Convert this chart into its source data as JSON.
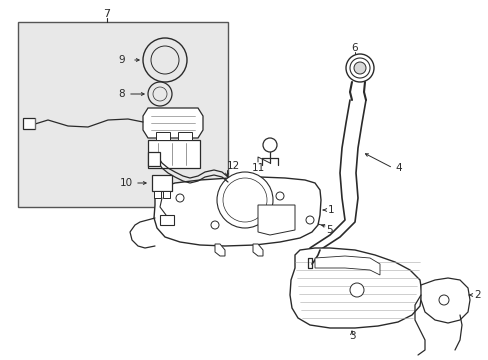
{
  "bg_color": "#ffffff",
  "line_color": "#2a2a2a",
  "inset_bg": "#e8e8e8",
  "inset_border": "#555555",
  "gray_fill": "#d8d8d8"
}
